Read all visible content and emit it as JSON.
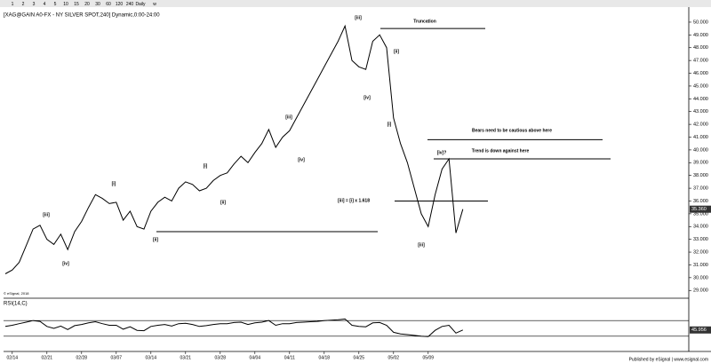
{
  "toolbar": [
    "1",
    "2",
    "3",
    "4",
    "5",
    "10",
    "15",
    "20",
    "30",
    "60",
    "120",
    "240",
    "Daily",
    "w"
  ],
  "footer": "Published by eSignal | www.esignal.com",
  "copyright": "© eSignal, 2018",
  "chart_data": [
    {
      "type": "line",
      "title": "[XAG@GAIN A0-FX - NY SILVER SPOT,240] Dynamic,0:00-24:00",
      "categories": [
        null,
        "02/14",
        null,
        null,
        null,
        null,
        "02/21",
        null,
        null,
        null,
        null,
        "02/28",
        null,
        null,
        null,
        null,
        "03/07",
        null,
        null,
        null,
        null,
        "03/14",
        null,
        null,
        null,
        null,
        "03/21",
        null,
        null,
        null,
        null,
        "03/28",
        null,
        null,
        null,
        null,
        "04/04",
        null,
        null,
        null,
        null,
        "04/11",
        null,
        null,
        null,
        null,
        "04/18",
        null,
        null,
        null,
        null,
        "04/25",
        null,
        null,
        null,
        null,
        "05/02",
        null,
        null,
        null,
        null,
        "05/09",
        null,
        null,
        null,
        null,
        null
      ],
      "values": [
        30.3,
        30.6,
        31.2,
        32.5,
        33.8,
        34.1,
        33.0,
        32.6,
        33.4,
        32.2,
        33.6,
        34.4,
        35.5,
        36.5,
        36.2,
        35.8,
        35.9,
        34.5,
        35.2,
        34.0,
        33.8,
        35.2,
        35.9,
        36.3,
        36.0,
        37.0,
        37.5,
        37.3,
        36.8,
        37.0,
        37.6,
        38.0,
        38.2,
        38.9,
        39.5,
        39.0,
        39.8,
        40.5,
        41.6,
        40.2,
        41.0,
        41.5,
        42.5,
        43.5,
        44.5,
        45.5,
        46.5,
        47.5,
        48.5,
        49.7,
        47.0,
        46.5,
        46.3,
        48.5,
        49.0,
        48.0,
        42.5,
        40.5,
        39.0,
        37.0,
        35.0,
        34.0,
        36.5,
        38.5,
        39.3,
        33.5,
        35.36
      ],
      "last_value_label": "35.360",
      "color": "#000000",
      "ylim": [
        28.6,
        50.9
      ],
      "yticks": [
        {
          "value": 29,
          "label": "29.000"
        },
        {
          "value": 30,
          "label": "30.000"
        },
        {
          "value": 31,
          "label": "31.000"
        },
        {
          "value": 32,
          "label": "32.000"
        },
        {
          "value": 33,
          "label": "33.000"
        },
        {
          "value": 34,
          "label": "34.000"
        },
        {
          "value": 35,
          "label": "35.000"
        },
        {
          "value": 36,
          "label": "36.000"
        },
        {
          "value": 37,
          "label": "37.000"
        },
        {
          "value": 38,
          "label": "38.000"
        },
        {
          "value": 39,
          "label": "39.000"
        },
        {
          "value": 40,
          "label": "40.000"
        },
        {
          "value": 41,
          "label": "41.000"
        },
        {
          "value": 42,
          "label": "42.000"
        },
        {
          "value": 43,
          "label": "43.000"
        },
        {
          "value": 44,
          "label": "44.000"
        },
        {
          "value": 45,
          "label": "45.000"
        },
        {
          "value": 46,
          "label": "46.000"
        },
        {
          "value": 47,
          "label": "47.000"
        },
        {
          "value": 48,
          "label": "48.000"
        },
        {
          "value": 49,
          "label": "49.000"
        },
        {
          "value": 50,
          "label": "50.000"
        }
      ],
      "levels": [
        49.5,
        40.8,
        39.3,
        36.0,
        33.6
      ],
      "annotations": [
        "[iii]",
        "[iv]",
        "[i]",
        "[ii]",
        "[i]",
        "[ii]",
        "[iii]",
        "[iv]",
        "[iii]",
        "[iv]",
        "[i]",
        "[ii]",
        "[iii]",
        "[iv]?",
        "[iii] = [i] x 1.618",
        "Truncation",
        "Bears need to be cautious above here",
        "Trend is down against here"
      ]
    },
    {
      "type": "line",
      "title": "RSI(14,C)",
      "values": [
        55,
        58,
        62,
        66,
        70,
        68,
        55,
        50,
        56,
        47,
        57,
        60,
        64,
        67,
        62,
        58,
        58,
        48,
        54,
        45,
        44,
        55,
        58,
        60,
        56,
        62,
        63,
        60,
        55,
        57,
        60,
        62,
        62,
        65,
        66,
        60,
        64,
        66,
        70,
        58,
        62,
        62,
        65,
        66,
        67,
        68,
        70,
        71,
        72,
        74,
        58,
        55,
        54,
        64,
        65,
        58,
        40,
        36,
        34,
        32,
        30,
        29,
        45,
        55,
        58,
        38,
        45.956
      ],
      "color": "#000000",
      "ylim": [
        0,
        100
      ],
      "levels": [
        70,
        30
      ]
    }
  ]
}
